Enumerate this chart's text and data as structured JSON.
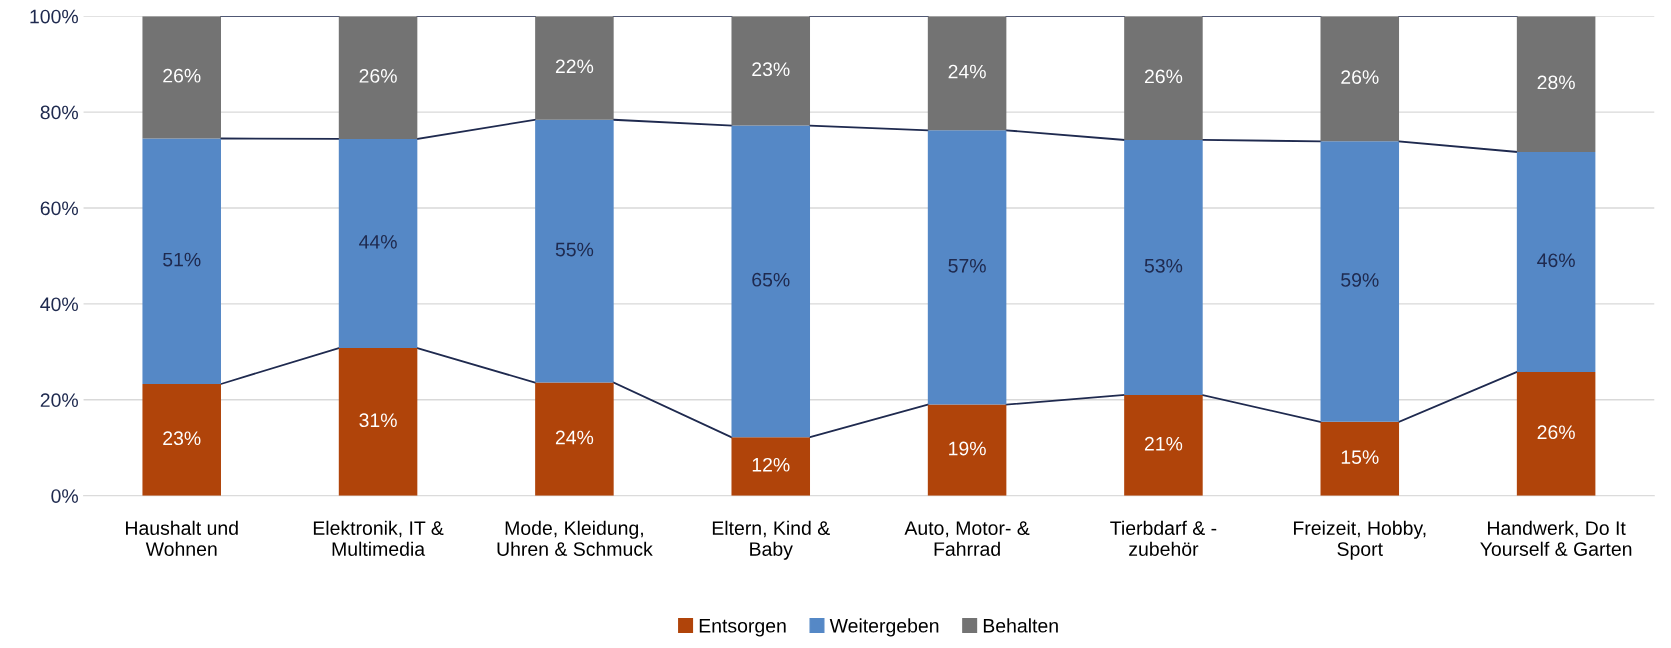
{
  "chart_data": {
    "type": "bar",
    "stacked": true,
    "categories": [
      "Haushalt und\nWohnen",
      "Elektronik, IT &\nMultimedia",
      "Mode, Kleidung,\nUhren & Schmuck",
      "Eltern, Kind &\nBaby",
      "Auto, Motor- &\nFahrrad",
      "Tierbdarf & -\nzubehör",
      "Freizeit, Hobby,\nSport",
      "Handwerk, Do It\nYourself & Garten"
    ],
    "series": [
      {
        "name": "Entsorgen",
        "color": "#b0440a",
        "values": [
          23.3,
          30.8,
          23.6,
          12.2,
          19.0,
          21.0,
          15.4,
          25.8
        ],
        "value_labels": [
          "23%",
          "31%",
          "24%",
          "12%",
          "19%",
          "21%",
          "15%",
          "26%"
        ]
      },
      {
        "name": "Weitergeben",
        "color": "#5588c6",
        "values": [
          51.2,
          43.6,
          54.8,
          65.0,
          57.2,
          53.2,
          58.5,
          45.9
        ],
        "value_labels": [
          "51%",
          "44%",
          "55%",
          "65%",
          "57%",
          "53%",
          "59%",
          "46%"
        ]
      },
      {
        "name": "Behalten",
        "color": "#737373",
        "values": [
          25.5,
          25.6,
          21.6,
          22.8,
          23.8,
          25.8,
          26.1,
          28.3
        ],
        "value_labels": [
          "26%",
          "26%",
          "22%",
          "23%",
          "24%",
          "26%",
          "26%",
          "28%"
        ]
      }
    ],
    "ylim": [
      0,
      100
    ],
    "yticks": [
      {
        "value": 0,
        "label": "0%"
      },
      {
        "value": 20,
        "label": "20%"
      },
      {
        "value": 40,
        "label": "40%"
      },
      {
        "value": 60,
        "label": "60%"
      },
      {
        "value": 80,
        "label": "80%"
      },
      {
        "value": 100,
        "label": "100%"
      }
    ],
    "grid": "y",
    "legend": "bottom"
  }
}
